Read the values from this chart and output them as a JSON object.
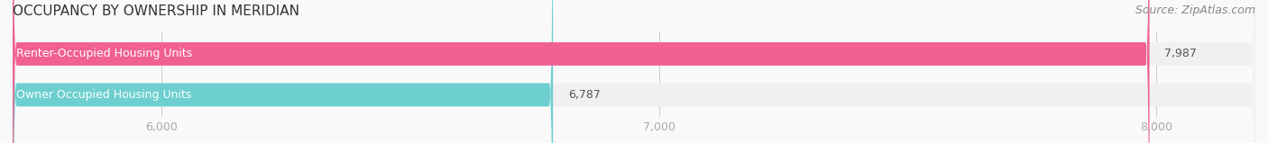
{
  "title": "OCCUPANCY BY OWNERSHIP IN MERIDIAN",
  "source": "Source: ZipAtlas.com",
  "categories": [
    "Owner Occupied Housing Units",
    "Renter-Occupied Housing Units"
  ],
  "values": [
    6787,
    7987
  ],
  "bar_colors": [
    "#6dcfcf",
    "#f06090"
  ],
  "bar_bg_color": "#f0f0f0",
  "xlim_min": 5700,
  "xlim_max": 8200,
  "xticks": [
    6000,
    7000,
    8000
  ],
  "xtick_labels": [
    "6,000",
    "7,000",
    "8,000"
  ],
  "value_labels": [
    "6,787",
    "7,987"
  ],
  "title_fontsize": 11,
  "source_fontsize": 9,
  "label_fontsize": 9,
  "tick_fontsize": 9,
  "background_color": "#f9f9f9",
  "bar_height": 0.55
}
